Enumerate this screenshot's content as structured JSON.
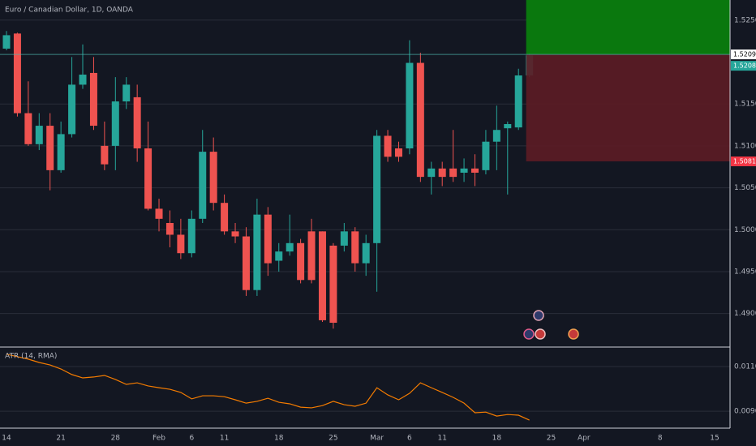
{
  "chart_data": [
    {
      "type": "candlestick",
      "title": "Euro / Canadian Dollar, 1D, OANDA",
      "categories": [
        "14",
        null,
        null,
        null,
        null,
        "21",
        null,
        null,
        null,
        null,
        "28",
        null,
        null,
        null,
        "Feb",
        null,
        null,
        "6",
        null,
        null,
        "11",
        null,
        null,
        null,
        null,
        "18",
        null,
        null,
        null,
        null,
        "25",
        null,
        null,
        null,
        "Mar",
        null,
        null,
        "6",
        null,
        null,
        "11",
        null,
        null,
        null,
        null,
        "18",
        null,
        null,
        null,
        null,
        "25",
        null,
        null,
        "Apr",
        null,
        null,
        null,
        null,
        null,
        null,
        "8",
        null,
        null,
        null,
        null,
        "15",
        null
      ],
      "open": [
        1.5216,
        1.5234,
        1.5139,
        1.5102,
        1.5124,
        1.5071,
        1.5114,
        1.5173,
        1.5187,
        1.51,
        1.51,
        1.5153,
        1.5158,
        1.5097,
        1.5025,
        1.5008,
        1.4994,
        1.4972,
        1.5013,
        1.5093,
        1.5032,
        1.4998,
        1.4992,
        1.4928,
        1.5018,
        1.4963,
        1.4974,
        1.4984,
        1.4998,
        1.4998,
        1.4981,
        1.4981,
        1.4998,
        1.496,
        1.4984,
        1.5112,
        1.5097,
        1.5097,
        1.5199,
        1.5063,
        1.5073,
        1.5073,
        1.5068,
        1.5073,
        1.5071,
        1.5105,
        1.5121,
        1.5122,
        1.5184,
        null,
        null,
        null,
        null,
        null,
        null,
        null,
        null,
        null,
        null,
        null,
        null,
        null,
        null,
        null,
        null,
        null,
        null
      ],
      "high": [
        1.5237,
        1.5235,
        1.5177,
        1.5139,
        1.5139,
        1.5129,
        1.5206,
        1.5221,
        1.5206,
        1.5129,
        1.5182,
        1.5182,
        1.5173,
        1.5129,
        1.5037,
        1.5023,
        1.5013,
        1.5023,
        1.5119,
        1.511,
        1.5042,
        1.5008,
        1.5003,
        1.5037,
        1.5027,
        1.4984,
        1.5018,
        1.4989,
        1.5013,
        1.4998,
        1.4984,
        1.5008,
        1.5003,
        1.4994,
        1.5119,
        1.5119,
        1.5105,
        1.5226,
        1.5211,
        1.5081,
        1.5081,
        1.5119,
        1.5085,
        1.509,
        1.5119,
        1.5148,
        1.5129,
        1.5192,
        1.5211,
        null,
        null,
        null,
        null,
        null,
        null,
        null,
        null,
        null,
        null,
        null,
        null,
        null,
        null,
        null,
        null,
        null,
        null
      ],
      "low": [
        1.5214,
        1.5135,
        1.51,
        1.5095,
        1.5047,
        1.5068,
        1.511,
        1.5168,
        1.5119,
        1.5071,
        1.5071,
        1.5144,
        1.5081,
        1.5023,
        1.4998,
        1.4979,
        1.4965,
        1.4967,
        1.5008,
        1.5023,
        1.4994,
        1.4984,
        1.4921,
        1.4921,
        1.4945,
        1.495,
        1.4969,
        1.4936,
        1.4936,
        1.489,
        1.4882,
        1.4974,
        1.495,
        1.4945,
        1.4926,
        1.5081,
        1.5081,
        1.509,
        1.5057,
        1.5042,
        1.5052,
        1.5057,
        1.5057,
        1.5052,
        1.5066,
        1.5071,
        1.5042,
        1.5119,
        1.5182,
        null,
        null,
        null,
        null,
        null,
        null,
        null,
        null,
        null,
        null,
        null,
        null,
        null,
        null,
        null,
        null,
        null,
        null
      ],
      "close": [
        1.5232,
        1.5139,
        1.5102,
        1.5124,
        1.5071,
        1.5114,
        1.5173,
        1.5185,
        1.5124,
        1.5078,
        1.5153,
        1.5173,
        1.5097,
        1.5025,
        1.5013,
        1.4994,
        1.4972,
        1.5013,
        1.5093,
        1.5032,
        1.4998,
        1.4992,
        1.4928,
        1.5018,
        1.496,
        1.4974,
        1.4984,
        1.494,
        1.494,
        1.4892,
        1.4889,
        1.4998,
        1.496,
        1.4984,
        1.5112,
        1.5087,
        1.5087,
        1.5199,
        1.5063,
        1.5073,
        1.5063,
        1.5063,
        1.5073,
        1.5068,
        1.5105,
        1.5119,
        1.5126,
        1.5184,
        1.5208,
        null,
        null,
        null,
        null,
        null,
        null,
        null,
        null,
        null,
        null,
        null,
        null,
        null,
        null,
        null,
        null,
        null,
        null
      ],
      "up_color": "#26a69a",
      "down_color": "#ef5350",
      "ylim": [
        1.486,
        1.5274
      ],
      "yticks": [
        {
          "value": 1.525,
          "label": "1.52500"
        },
        {
          "value": 1.515,
          "label": "1.51500"
        },
        {
          "value": 1.51,
          "label": "1.51000"
        },
        {
          "value": 1.505,
          "label": "1.50500"
        },
        {
          "value": 1.5,
          "label": "1.50000"
        },
        {
          "value": 1.495,
          "label": "1.49500"
        },
        {
          "value": 1.49,
          "label": "1.49000"
        }
      ],
      "grid": true,
      "position": {
        "entry": 1.52091,
        "stop": 1.50815,
        "target": 1.5274,
        "profit_color": "#0a7d0e",
        "loss_color": "#5b1c25"
      },
      "price_labels": [
        {
          "value": 1.52091,
          "label": "1.52091",
          "color": "#ffffff",
          "text_color": "#000000"
        },
        {
          "value": 1.52081,
          "label": "1.52081",
          "color": "#26a69a",
          "text_color": "#ffffff"
        },
        {
          "value": 1.50815,
          "label": "1.50815",
          "color": "#f23645",
          "text_color": "#ffffff"
        }
      ]
    },
    {
      "type": "line",
      "title": "ATR (14, RMA)",
      "color": "#f57c00",
      "values": [
        0.01155,
        0.01144,
        0.01133,
        0.01118,
        0.01107,
        0.01089,
        0.01064,
        0.01049,
        0.01053,
        0.0106,
        0.01042,
        0.0102,
        0.01027,
        0.01013,
        0.01005,
        0.00998,
        0.00984,
        0.00955,
        0.00969,
        0.00969,
        0.00965,
        0.00951,
        0.00936,
        0.00944,
        0.00958,
        0.0094,
        0.00933,
        0.00918,
        0.00915,
        0.00925,
        0.00944,
        0.00929,
        0.00922,
        0.00936,
        0.01005,
        0.00973,
        0.00951,
        0.0098,
        0.01027,
        0.01005,
        0.00984,
        0.00962,
        0.00936,
        0.00893,
        0.00896,
        0.00878,
        0.00885,
        0.00882,
        0.0086,
        null,
        null,
        null,
        null,
        null,
        null,
        null,
        null,
        null,
        null,
        null,
        null,
        null,
        null,
        null,
        null,
        null,
        null
      ],
      "ylim": [
        0.00824,
        0.01187
      ],
      "yticks": [
        {
          "value": 0.011,
          "label": "0.01100"
        },
        {
          "value": 0.009,
          "label": "0.00900"
        }
      ],
      "grid": true
    }
  ]
}
